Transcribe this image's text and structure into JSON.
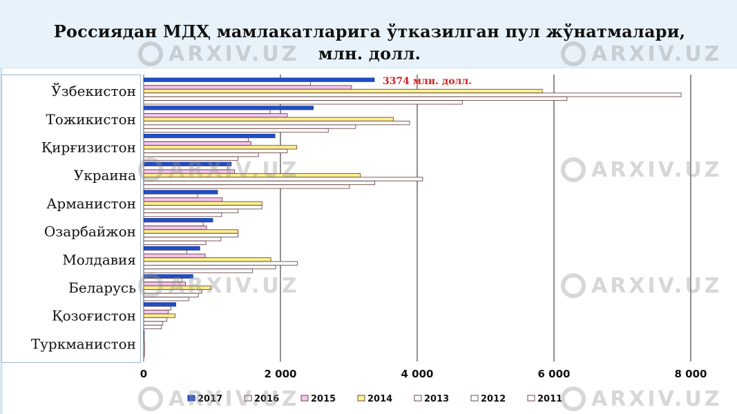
{
  "header": {
    "title_line1": "Россиядан МДҲ мамлакатларига ўтказилган пул жўнатмалари,",
    "title_line2": "млн. долл."
  },
  "watermark_text": "ARXIV.UZ",
  "colors": {
    "title_band": "#e7f2fa",
    "s2017": "#1f4fc7",
    "s2016": "#ffffff",
    "s2015": "#f4c4ee",
    "s2014": "#fdf08c",
    "s2013": "#ffffff",
    "s2012": "#ffffff",
    "s2011": "#ffffff",
    "annotation": "#d81e1e",
    "grid": "#8f8f8f"
  },
  "chart_data": {
    "type": "bar",
    "orientation": "horizontal",
    "title": "Россиядан МДҲ мамлакатларига ўтказилган пул жўнатмалари, млн. долл.",
    "categories": [
      "Ўзбекистон",
      "Тожикистон",
      "Қирғизистон",
      "Украина",
      "Арманистон",
      "Озарбайжон",
      "Молдавия",
      "Беларусь",
      "Қозоғистон",
      "Туркманистон"
    ],
    "series": [
      {
        "name": "2017",
        "color": "#1f4fc7",
        "values": [
          3374,
          2480,
          1920,
          1280,
          1080,
          1010,
          820,
          720,
          470,
          8
        ]
      },
      {
        "name": "2016",
        "color": "#ffffff",
        "values": [
          2440,
          1850,
          1530,
          1230,
          790,
          870,
          630,
          560,
          400,
          6
        ]
      },
      {
        "name": "2015",
        "color": "#f4c4ee",
        "values": [
          3040,
          2100,
          1570,
          1330,
          1150,
          920,
          900,
          610,
          360,
          6
        ]
      },
      {
        "name": "2014",
        "color": "#fdf08c",
        "values": [
          5830,
          3650,
          2240,
          3170,
          1730,
          1380,
          1860,
          980,
          460,
          12
        ]
      },
      {
        "name": "2013",
        "color": "#ffffff",
        "values": [
          7860,
          3890,
          2100,
          4080,
          1730,
          1380,
          2250,
          850,
          340,
          12
        ]
      },
      {
        "name": "2012",
        "color": "#ffffff",
        "values": [
          6190,
          3100,
          1680,
          3380,
          1380,
          1130,
          1930,
          800,
          280,
          12
        ]
      },
      {
        "name": "2011",
        "color": "#ffffff",
        "values": [
          4660,
          2700,
          1380,
          3010,
          1140,
          910,
          1590,
          660,
          260,
          10
        ]
      }
    ],
    "xlim": [
      0,
      8000
    ],
    "x_ticks": [
      0,
      2000,
      4000,
      6000,
      8000
    ],
    "x_tick_labels": [
      "0",
      "2 000",
      "4 000",
      "6 000",
      "8 000"
    ],
    "xlabel": "",
    "ylabel": "",
    "grid": "vertical",
    "legend_position": "bottom",
    "annotation": {
      "text": "3374 млн. долл.",
      "category": "Ўзбекистон",
      "series": "2017",
      "value": 3374
    }
  }
}
